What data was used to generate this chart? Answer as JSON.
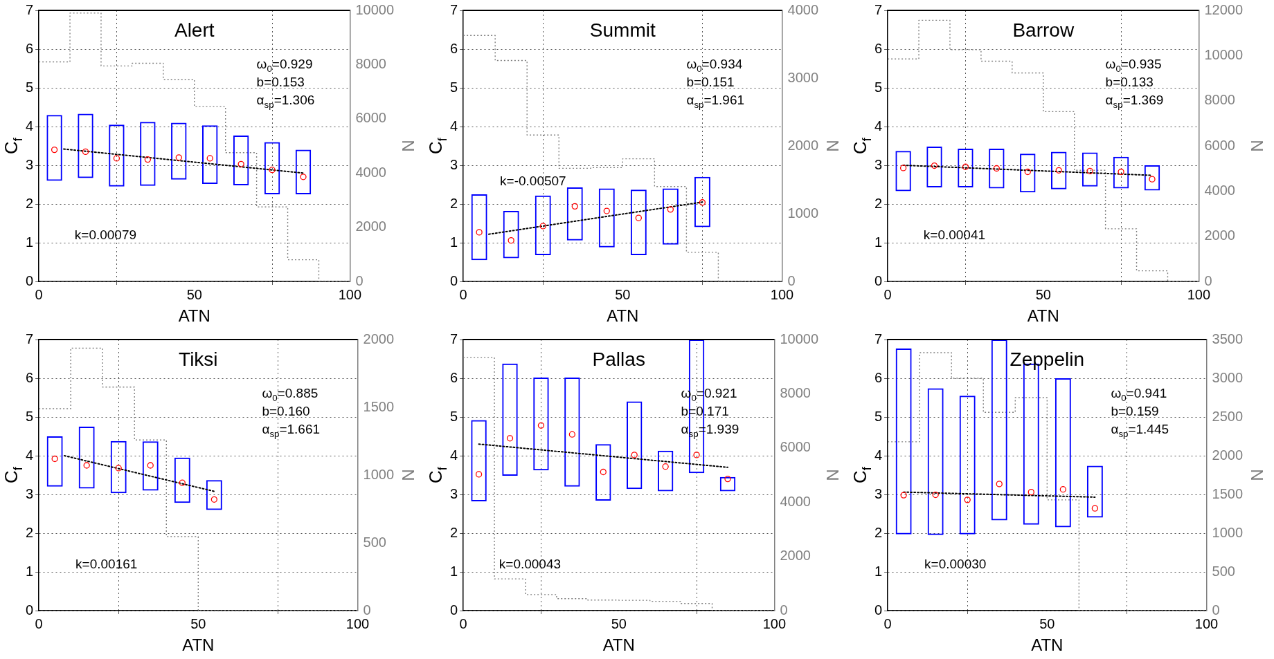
{
  "chart_data": [
    {
      "type": "bar",
      "title": "Alert",
      "xlabel": "ATN",
      "ylabel": "C$_{f}$",
      "y2label": "N",
      "xlim": [
        0,
        100
      ],
      "xticks": [
        0,
        50,
        100
      ],
      "ylim": [
        0,
        7
      ],
      "yticks": [
        0,
        1,
        2,
        3,
        4,
        5,
        6,
        7
      ],
      "y2lim": [
        0,
        10000
      ],
      "y2ticks": [
        0,
        2000,
        4000,
        6000,
        8000,
        10000
      ],
      "grid": true,
      "annotations": [
        "ω$_{0}$=0.929",
        "b=0.153",
        "α$_{sp}$=1.306",
        "k=0.00079"
      ],
      "series": [
        {
          "color": "#0000ff",
          "x": [
            5,
            15,
            25,
            35,
            45,
            55,
            65,
            75,
            85
          ],
          "base": [
            2.6,
            2.67,
            2.45,
            2.47,
            2.63,
            2.52,
            2.48,
            2.25,
            2.25
          ],
          "values": [
            1.7,
            1.66,
            1.6,
            1.65,
            1.47,
            1.51,
            1.29,
            1.35,
            1.15
          ]
        },
        {
          "type": "scatter",
          "color": "#ff0000",
          "marker": "circle",
          "x": [
            5,
            15,
            25,
            35,
            45,
            55,
            65,
            75,
            85
          ],
          "values": [
            3.4,
            3.35,
            3.18,
            3.15,
            3.2,
            3.18,
            3.03,
            2.88,
            2.7
          ]
        },
        {
          "type": "line",
          "color": "#000000",
          "line_style": "dotted",
          "marker": "none",
          "x": [
            8,
            85
          ],
          "values": [
            3.42,
            2.8
          ]
        },
        {
          "type": "step",
          "axis": "y2",
          "color": "#808080",
          "line_style": "dotted",
          "marker": "none",
          "x": [
            0,
            10,
            20,
            30,
            40,
            50,
            60,
            70,
            80,
            90,
            100
          ],
          "values": [
            8100,
            9900,
            7950,
            8050,
            7450,
            6450,
            4750,
            2750,
            800,
            0,
            0
          ]
        }
      ]
    },
    {
      "type": "bar",
      "title": "Summit",
      "xlabel": "ATN",
      "ylabel": "C$_{f}$",
      "y2label": "N",
      "xlim": [
        0,
        100
      ],
      "xticks": [
        0,
        50,
        100
      ],
      "ylim": [
        0,
        7
      ],
      "yticks": [
        0,
        1,
        2,
        3,
        4,
        5,
        6,
        7
      ],
      "y2lim": [
        0,
        4000
      ],
      "y2ticks": [
        0,
        1000,
        2000,
        3000,
        4000
      ],
      "grid": true,
      "annotations": [
        "ω$_{0}$=0.934",
        "b=0.151",
        "α$_{sp}$=1.961",
        "k=-0.00507"
      ],
      "series": [
        {
          "color": "#0000ff",
          "x": [
            5,
            15,
            25,
            35,
            45,
            55,
            65,
            75
          ],
          "base": [
            0.55,
            0.6,
            0.68,
            1.06,
            0.88,
            0.68,
            0.95,
            1.4
          ],
          "values": [
            1.7,
            1.22,
            1.54,
            1.37,
            1.52,
            1.69,
            1.45,
            1.3
          ]
        },
        {
          "type": "scatter",
          "color": "#ff0000",
          "marker": "circle",
          "x": [
            5,
            15,
            25,
            35,
            45,
            55,
            65,
            75
          ],
          "values": [
            1.27,
            1.06,
            1.43,
            1.94,
            1.82,
            1.64,
            1.86,
            2.04
          ]
        },
        {
          "type": "line",
          "color": "#000000",
          "line_style": "dotted",
          "marker": "none",
          "x": [
            8,
            75
          ],
          "values": [
            1.22,
            2.05
          ]
        },
        {
          "type": "step",
          "axis": "y2",
          "color": "#808080",
          "line_style": "dotted",
          "marker": "none",
          "x": [
            0,
            10,
            20,
            30,
            40,
            50,
            60,
            70,
            80,
            90,
            100
          ],
          "values": [
            3630,
            3260,
            2160,
            1670,
            1680,
            1810,
            1400,
            430,
            0,
            0,
            0
          ]
        }
      ]
    },
    {
      "type": "bar",
      "title": "Barrow",
      "xlabel": "ATN",
      "ylabel": "C$_{f}$",
      "y2label": "N",
      "xlim": [
        0,
        100
      ],
      "xticks": [
        0,
        50,
        100
      ],
      "ylim": [
        0,
        7
      ],
      "yticks": [
        0,
        1,
        2,
        3,
        4,
        5,
        6,
        7
      ],
      "y2lim": [
        0,
        12000
      ],
      "y2ticks": [
        0,
        2000,
        4000,
        6000,
        8000,
        10000,
        12000
      ],
      "grid": true,
      "annotations": [
        "ω$_{0}$=0.935",
        "b=0.133",
        "α$_{sp}$=1.369",
        "k=0.00041"
      ],
      "series": [
        {
          "color": "#0000ff",
          "x": [
            5,
            15,
            25,
            35,
            45,
            55,
            65,
            75,
            85
          ],
          "base": [
            2.33,
            2.43,
            2.43,
            2.4,
            2.3,
            2.38,
            2.45,
            2.4,
            2.35
          ],
          "values": [
            1.04,
            1.05,
            1.0,
            1.03,
            1.0,
            0.97,
            0.88,
            0.82,
            0.65
          ]
        },
        {
          "type": "scatter",
          "color": "#ff0000",
          "marker": "circle",
          "x": [
            5,
            15,
            25,
            35,
            45,
            55,
            65,
            75,
            85
          ],
          "values": [
            2.93,
            2.99,
            2.96,
            2.92,
            2.83,
            2.87,
            2.85,
            2.83,
            2.64
          ]
        },
        {
          "type": "line",
          "color": "#000000",
          "line_style": "dotted",
          "marker": "none",
          "x": [
            5,
            85
          ],
          "values": [
            3.0,
            2.74
          ]
        },
        {
          "type": "step",
          "axis": "y2",
          "color": "#808080",
          "line_style": "dotted",
          "marker": "none",
          "x": [
            0,
            10,
            20,
            30,
            40,
            50,
            60,
            70,
            80,
            90,
            100
          ],
          "values": [
            9850,
            11560,
            10260,
            9750,
            9230,
            7520,
            4920,
            2330,
            470,
            0,
            0
          ]
        }
      ]
    },
    {
      "type": "bar",
      "title": "Tiksi",
      "xlabel": "ATN",
      "ylabel": "C$_{f}$",
      "y2label": "N",
      "xlim": [
        0,
        100
      ],
      "xticks": [
        0,
        50,
        100
      ],
      "ylim": [
        0,
        7
      ],
      "yticks": [
        0,
        1,
        2,
        3,
        4,
        5,
        6,
        7
      ],
      "y2lim": [
        0,
        2000
      ],
      "y2ticks": [
        0,
        500,
        1000,
        1500,
        2000
      ],
      "grid": true,
      "annotations": [
        "ω$_{0}$=0.885",
        "b=0.160",
        "α$_{sp}$=1.661",
        "k=0.00161"
      ],
      "series": [
        {
          "color": "#0000ff",
          "x": [
            5,
            15,
            25,
            35,
            45,
            55
          ],
          "base": [
            3.2,
            3.15,
            3.03,
            3.1,
            2.78,
            2.6
          ],
          "values": [
            1.3,
            1.6,
            1.35,
            1.27,
            1.17,
            0.77
          ]
        },
        {
          "type": "scatter",
          "color": "#ff0000",
          "marker": "circle",
          "x": [
            5,
            15,
            25,
            35,
            45,
            55
          ],
          "values": [
            3.92,
            3.75,
            3.68,
            3.75,
            3.3,
            2.87
          ]
        },
        {
          "type": "line",
          "color": "#000000",
          "line_style": "dotted",
          "marker": "none",
          "x": [
            8,
            55
          ],
          "values": [
            4.0,
            3.08
          ]
        },
        {
          "type": "step",
          "axis": "y2",
          "color": "#808080",
          "line_style": "dotted",
          "marker": "none",
          "x": [
            0,
            10,
            20,
            30,
            40,
            50,
            60,
            70,
            80,
            90,
            100
          ],
          "values": [
            1490,
            1936,
            1649,
            1259,
            546,
            0,
            0,
            0,
            0,
            0,
            0
          ]
        }
      ]
    },
    {
      "type": "bar",
      "title": "Pallas",
      "xlabel": "ATN",
      "ylabel": "C$_{f}$",
      "y2label": "N",
      "xlim": [
        0,
        100
      ],
      "xticks": [
        0,
        50,
        100
      ],
      "ylim": [
        0,
        7
      ],
      "yticks": [
        0,
        1,
        2,
        3,
        4,
        5,
        6,
        7
      ],
      "y2lim": [
        0,
        10000
      ],
      "y2ticks": [
        0,
        2000,
        4000,
        6000,
        8000,
        10000
      ],
      "grid": true,
      "annotations": [
        "ω$_{0}$=0.921",
        "b=0.171",
        "α$_{sp}$=1.939",
        "k=0.00043"
      ],
      "series": [
        {
          "color": "#0000ff",
          "x": [
            5,
            15,
            25,
            35,
            45,
            55,
            65,
            75,
            85
          ],
          "base": [
            2.82,
            3.48,
            3.62,
            3.2,
            2.84,
            3.14,
            3.08,
            3.55,
            3.08
          ],
          "values": [
            2.1,
            2.9,
            2.4,
            2.82,
            1.46,
            2.26,
            1.05,
            3.45,
            0.37
          ]
        },
        {
          "type": "scatter",
          "color": "#ff0000",
          "marker": "circle",
          "x": [
            5,
            15,
            25,
            35,
            45,
            55,
            65,
            75,
            85
          ],
          "values": [
            3.52,
            4.45,
            4.78,
            4.55,
            3.58,
            4.02,
            3.72,
            4.02,
            3.4
          ]
        },
        {
          "type": "line",
          "color": "#000000",
          "line_style": "dotted",
          "marker": "none",
          "x": [
            5,
            85
          ],
          "values": [
            4.3,
            3.7
          ]
        },
        {
          "type": "step",
          "axis": "y2",
          "color": "#808080",
          "line_style": "dotted",
          "marker": "none",
          "x": [
            0,
            10,
            20,
            30,
            40,
            50,
            60,
            70,
            80,
            90,
            100
          ],
          "values": [
            9340,
            1170,
            590,
            440,
            390,
            380,
            340,
            260,
            0,
            0,
            0
          ]
        }
      ]
    },
    {
      "type": "bar",
      "title": "Zeppelin",
      "xlabel": "ATN",
      "ylabel": "C$_{f}$",
      "y2label": "N",
      "xlim": [
        0,
        100
      ],
      "xticks": [
        0,
        50,
        100
      ],
      "ylim": [
        0,
        7
      ],
      "yticks": [
        0,
        1,
        2,
        3,
        4,
        5,
        6,
        7
      ],
      "y2lim": [
        0,
        3500
      ],
      "y2ticks": [
        0,
        500,
        1000,
        1500,
        2000,
        2500,
        3000,
        3500
      ],
      "grid": true,
      "annotations": [
        "ω$_{0}$=0.941",
        "b=0.159",
        "α$_{sp}$=1.445",
        "k=0.00030"
      ],
      "series": [
        {
          "color": "#0000ff",
          "x": [
            5,
            15,
            25,
            35,
            45,
            55,
            65
          ],
          "base": [
            1.97,
            1.95,
            1.97,
            2.33,
            2.22,
            2.15,
            2.4
          ],
          "values": [
            4.8,
            3.79,
            3.58,
            4.67,
            4.16,
            3.85,
            1.34
          ]
        },
        {
          "type": "scatter",
          "color": "#ff0000",
          "marker": "circle",
          "x": [
            5,
            15,
            25,
            35,
            45,
            55,
            65
          ],
          "values": [
            2.98,
            2.99,
            2.86,
            3.27,
            3.06,
            3.13,
            2.64
          ]
        },
        {
          "type": "line",
          "color": "#000000",
          "line_style": "dotted",
          "marker": "none",
          "x": [
            5,
            65
          ],
          "values": [
            3.06,
            2.93
          ]
        },
        {
          "type": "step",
          "axis": "y2",
          "color": "#808080",
          "line_style": "dotted",
          "marker": "none",
          "x": [
            0,
            10,
            20,
            30,
            40,
            50,
            60,
            70,
            80,
            90,
            100
          ],
          "values": [
            2180,
            3330,
            3000,
            2560,
            2750,
            1430,
            0,
            0,
            0,
            0,
            0
          ]
        }
      ]
    }
  ]
}
